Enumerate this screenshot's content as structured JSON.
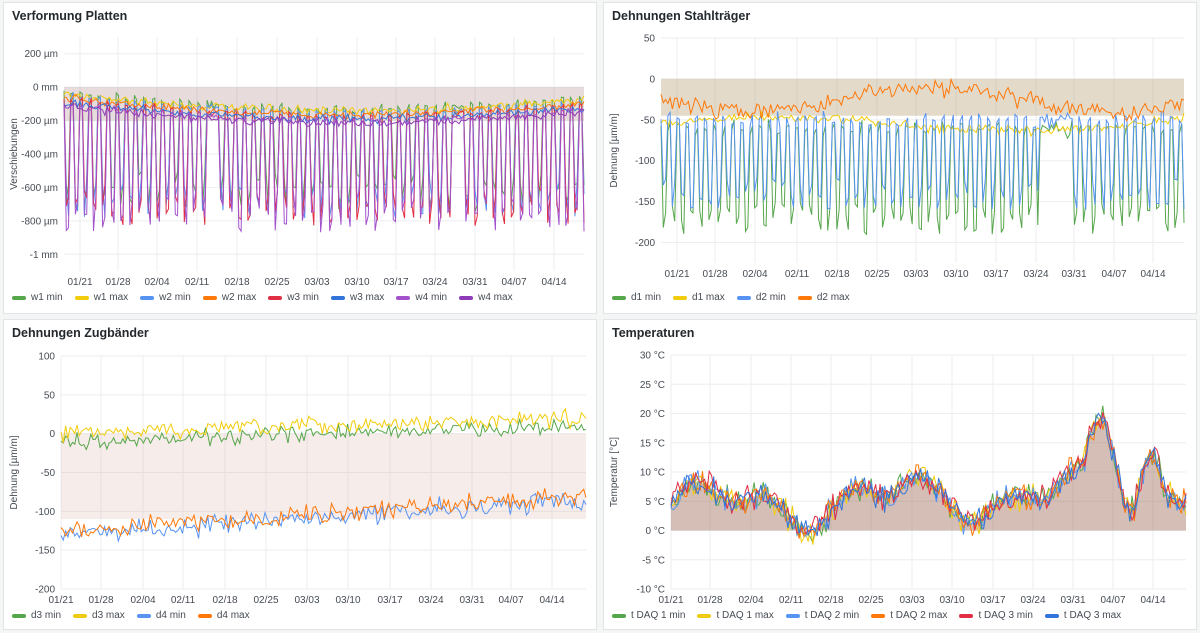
{
  "panels": [
    {
      "title": "Verformung Platten",
      "ylabel": "Verschiebungen",
      "colors": {
        "w1 min": "#56a64b",
        "w1 max": "#f2cc0c",
        "w2 min": "#5794f2",
        "w2 max": "#ff780a",
        "w3 min": "#e02f44",
        "w3 max": "#3274d9",
        "w4 min": "#a352cc",
        "w4 max": "#8f3bb8"
      },
      "legend": [
        "w1 min",
        "w1 max",
        "w2 min",
        "w2 max",
        "w3 min",
        "w3 max",
        "w4 min",
        "w4 max"
      ],
      "xticks": [
        "01/21",
        "01/28",
        "02/04",
        "02/11",
        "02/18",
        "02/25",
        "03/03",
        "03/10",
        "03/17",
        "03/24",
        "03/31",
        "04/07",
        "04/14"
      ],
      "yticks": [
        "200 µm",
        "0 mm",
        "-200 µm",
        "-400 µm",
        "-600 µm",
        "-800 µm",
        "-1 mm"
      ]
    },
    {
      "title": "Dehnungen Stahlträger",
      "ylabel": "Dehnung [µm/m]",
      "colors": {
        "d1 min": "#56a64b",
        "d1 max": "#f2cc0c",
        "d2 min": "#5794f2",
        "d2 max": "#ff780a"
      },
      "legend": [
        "d1 min",
        "d1 max",
        "d2 min",
        "d2 max"
      ],
      "xticks": [
        "01/21",
        "01/28",
        "02/04",
        "02/11",
        "02/18",
        "02/25",
        "03/03",
        "03/10",
        "03/17",
        "03/24",
        "03/31",
        "04/07",
        "04/14"
      ],
      "yticks": [
        "50",
        "0",
        "-50",
        "-100",
        "-150",
        "-200"
      ]
    },
    {
      "title": "Dehnungen Zugbänder",
      "ylabel": "Dehnung [µm/m]",
      "colors": {
        "d3 min": "#56a64b",
        "d3 max": "#f2cc0c",
        "d4 min": "#5794f2",
        "d4 max": "#ff780a"
      },
      "legend": [
        "d3 min",
        "d3 max",
        "d4 min",
        "d4 max"
      ],
      "xticks": [
        "01/21",
        "01/28",
        "02/04",
        "02/11",
        "02/18",
        "02/25",
        "03/03",
        "03/10",
        "03/17",
        "03/24",
        "03/31",
        "04/07",
        "04/14"
      ],
      "yticks": [
        "100",
        "50",
        "0",
        "-50",
        "-100",
        "-150",
        "-200"
      ]
    },
    {
      "title": "Temperaturen",
      "ylabel": "Temperatur [°C]",
      "colors": {
        "t DAQ 1 min": "#56a64b",
        "t DAQ 1 max": "#f2cc0c",
        "t DAQ 2 min": "#5794f2",
        "t DAQ 2 max": "#ff780a",
        "t DAQ 3 min": "#e02f44",
        "t DAQ 3 max": "#3274d9"
      },
      "legend": [
        "t DAQ 1 min",
        "t DAQ 1 max",
        "t DAQ 2 min",
        "t DAQ 2 max",
        "t DAQ 3 min",
        "t DAQ 3 max"
      ],
      "xticks": [
        "01/21",
        "01/28",
        "02/04",
        "02/11",
        "02/18",
        "02/25",
        "03/03",
        "03/10",
        "03/17",
        "03/24",
        "03/31",
        "04/07",
        "04/14"
      ],
      "yticks": [
        "30 °C",
        "25 °C",
        "20 °C",
        "15 °C",
        "10 °C",
        "5 °C",
        "0 °C",
        "-5 °C",
        "-10 °C"
      ]
    }
  ],
  "chart_data": [
    {
      "type": "line",
      "title": "Verformung Platten",
      "ylabel": "Verschiebungen",
      "ylim": [
        -1100,
        300
      ],
      "unit": "µm",
      "x_range": [
        "01/18",
        "04/22"
      ],
      "series": [
        {
          "name": "w1 min",
          "approx": "-100 to -850, daily dips"
        },
        {
          "name": "w1 max",
          "approx": "-50 to -200"
        },
        {
          "name": "w2 min",
          "approx": "-100 to -900"
        },
        {
          "name": "w2 max",
          "approx": "0 to -150"
        },
        {
          "name": "w3 min",
          "approx": "-100 to -800"
        },
        {
          "name": "w3 max",
          "approx": "0 to -150"
        },
        {
          "name": "w4 min",
          "approx": "-100 to -900"
        },
        {
          "name": "w4 max",
          "approx": "-50 to -250"
        }
      ]
    },
    {
      "type": "line",
      "title": "Dehnungen Stahlträger",
      "ylabel": "Dehnung [µm/m]",
      "ylim": [
        -225,
        50
      ],
      "x_range": [
        "01/18",
        "04/22"
      ],
      "series": [
        {
          "name": "d1 min",
          "approx": "-60 to -205"
        },
        {
          "name": "d1 max",
          "approx": "-40 to -80"
        },
        {
          "name": "d2 min",
          "approx": "-60 to -180"
        },
        {
          "name": "d2 max",
          "approx": "-15 to -55"
        }
      ]
    },
    {
      "type": "line",
      "title": "Dehnungen Zugbänder",
      "ylabel": "Dehnung [µm/m]",
      "ylim": [
        -200,
        100
      ],
      "x_range": [
        "01/18",
        "04/22"
      ],
      "series": [
        {
          "name": "d3 min",
          "approx": "-15 to 20, rising trend"
        },
        {
          "name": "d3 max",
          "approx": "0 to 30"
        },
        {
          "name": "d4 min",
          "approx": "-150 to -80"
        },
        {
          "name": "d4 max",
          "approx": "-140 to -60, rising trend"
        }
      ]
    },
    {
      "type": "line",
      "title": "Temperaturen",
      "ylabel": "Temperatur [°C]",
      "ylim": [
        -10,
        30
      ],
      "x_range": [
        "01/18",
        "04/22"
      ],
      "series": [
        {
          "name": "t DAQ 1 min",
          "approx": "-2 to 20"
        },
        {
          "name": "t DAQ 1 max",
          "approx": "-1 to 27"
        },
        {
          "name": "t DAQ 2 min",
          "approx": "-2 to 21"
        },
        {
          "name": "t DAQ 2 max",
          "approx": "-1 to 26"
        },
        {
          "name": "t DAQ 3 min",
          "approx": "-2 to 21"
        },
        {
          "name": "t DAQ 3 max",
          "approx": "-1 to 22"
        }
      ]
    }
  ]
}
